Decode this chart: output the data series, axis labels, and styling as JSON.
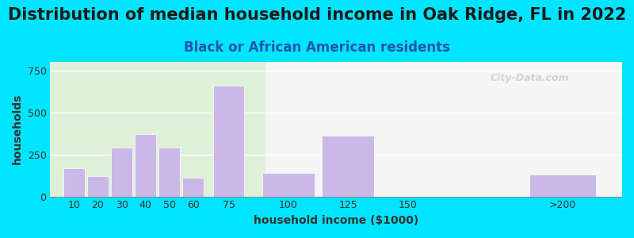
{
  "title": "Distribution of median household income in Oak Ridge, FL in 2022",
  "subtitle": "Black or African American residents",
  "xlabel": "household income ($1000)",
  "ylabel": "households",
  "bar_labels": [
    "10",
    "20",
    "30",
    "40",
    "50",
    "60",
    "75",
    "100",
    "125",
    "150",
    ">200"
  ],
  "bar_values": [
    170,
    120,
    290,
    370,
    290,
    110,
    660,
    140,
    360,
    0,
    130
  ],
  "bar_color": "#c9b8e8",
  "yticks": [
    0,
    250,
    500,
    750
  ],
  "ylim": [
    0,
    800
  ],
  "background_outer": "#00e5ff",
  "background_inner_left": "#dff0d8",
  "background_inner_right": "#f5f5f5",
  "title_fontsize": 15,
  "subtitle_fontsize": 12,
  "axis_label_fontsize": 10,
  "watermark": "City-Data.com",
  "x_positions": [
    10,
    20,
    30,
    40,
    50,
    60,
    75,
    100,
    125,
    150,
    215
  ],
  "bar_widths": [
    9,
    9,
    9,
    9,
    9,
    9,
    13,
    22,
    22,
    22,
    28
  ],
  "xlim": [
    0,
    240
  ]
}
